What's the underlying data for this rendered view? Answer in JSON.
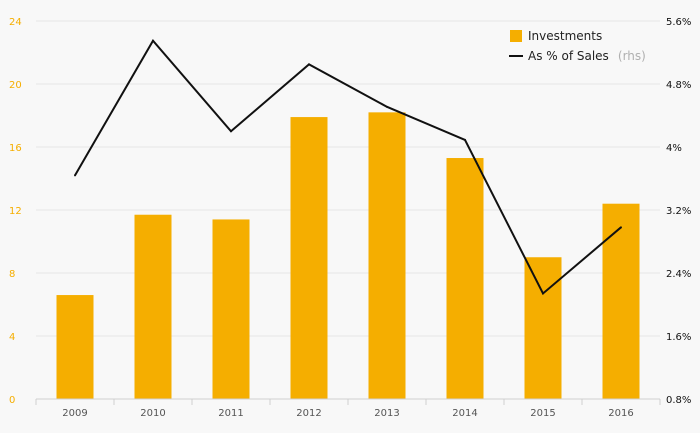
{
  "chart_data": {
    "type": "bar",
    "categories": [
      "2009",
      "2010",
      "2011",
      "2012",
      "2013",
      "2014",
      "2015",
      "2016"
    ],
    "series": [
      {
        "name": "Investments",
        "type": "bar",
        "axis": "left",
        "values": [
          6.6,
          11.7,
          11.4,
          17.9,
          18.2,
          15.3,
          9.0,
          12.4
        ]
      },
      {
        "name": "As % of Sales",
        "type": "line",
        "axis": "right",
        "values": [
          3.64,
          5.35,
          4.2,
          5.05,
          4.51,
          4.09,
          2.14,
          2.98
        ]
      }
    ],
    "y_left": {
      "ticks": [
        "0",
        "4",
        "8",
        "12",
        "16",
        "20",
        "24"
      ],
      "ylim": [
        0,
        24
      ]
    },
    "y_right": {
      "ticks": [
        "0.8%",
        "1.6%",
        "2.4%",
        "3.2%",
        "4%",
        "4.8%",
        "5.6%"
      ],
      "ylim": [
        0.8,
        5.6
      ]
    },
    "grid": true,
    "legend": {
      "position": "top-right",
      "items": [
        {
          "label": "Investments",
          "note": "",
          "marker": "square"
        },
        {
          "label": "As % of Sales",
          "note": "(rhs)",
          "marker": "line"
        }
      ]
    },
    "colors": {
      "bar": "#f5ae00",
      "line": "#111111",
      "left_ticks": "#f5ae00",
      "right_ticks": "#111111",
      "grid": "#e6e6e6",
      "background": "#f8f8f8"
    }
  }
}
